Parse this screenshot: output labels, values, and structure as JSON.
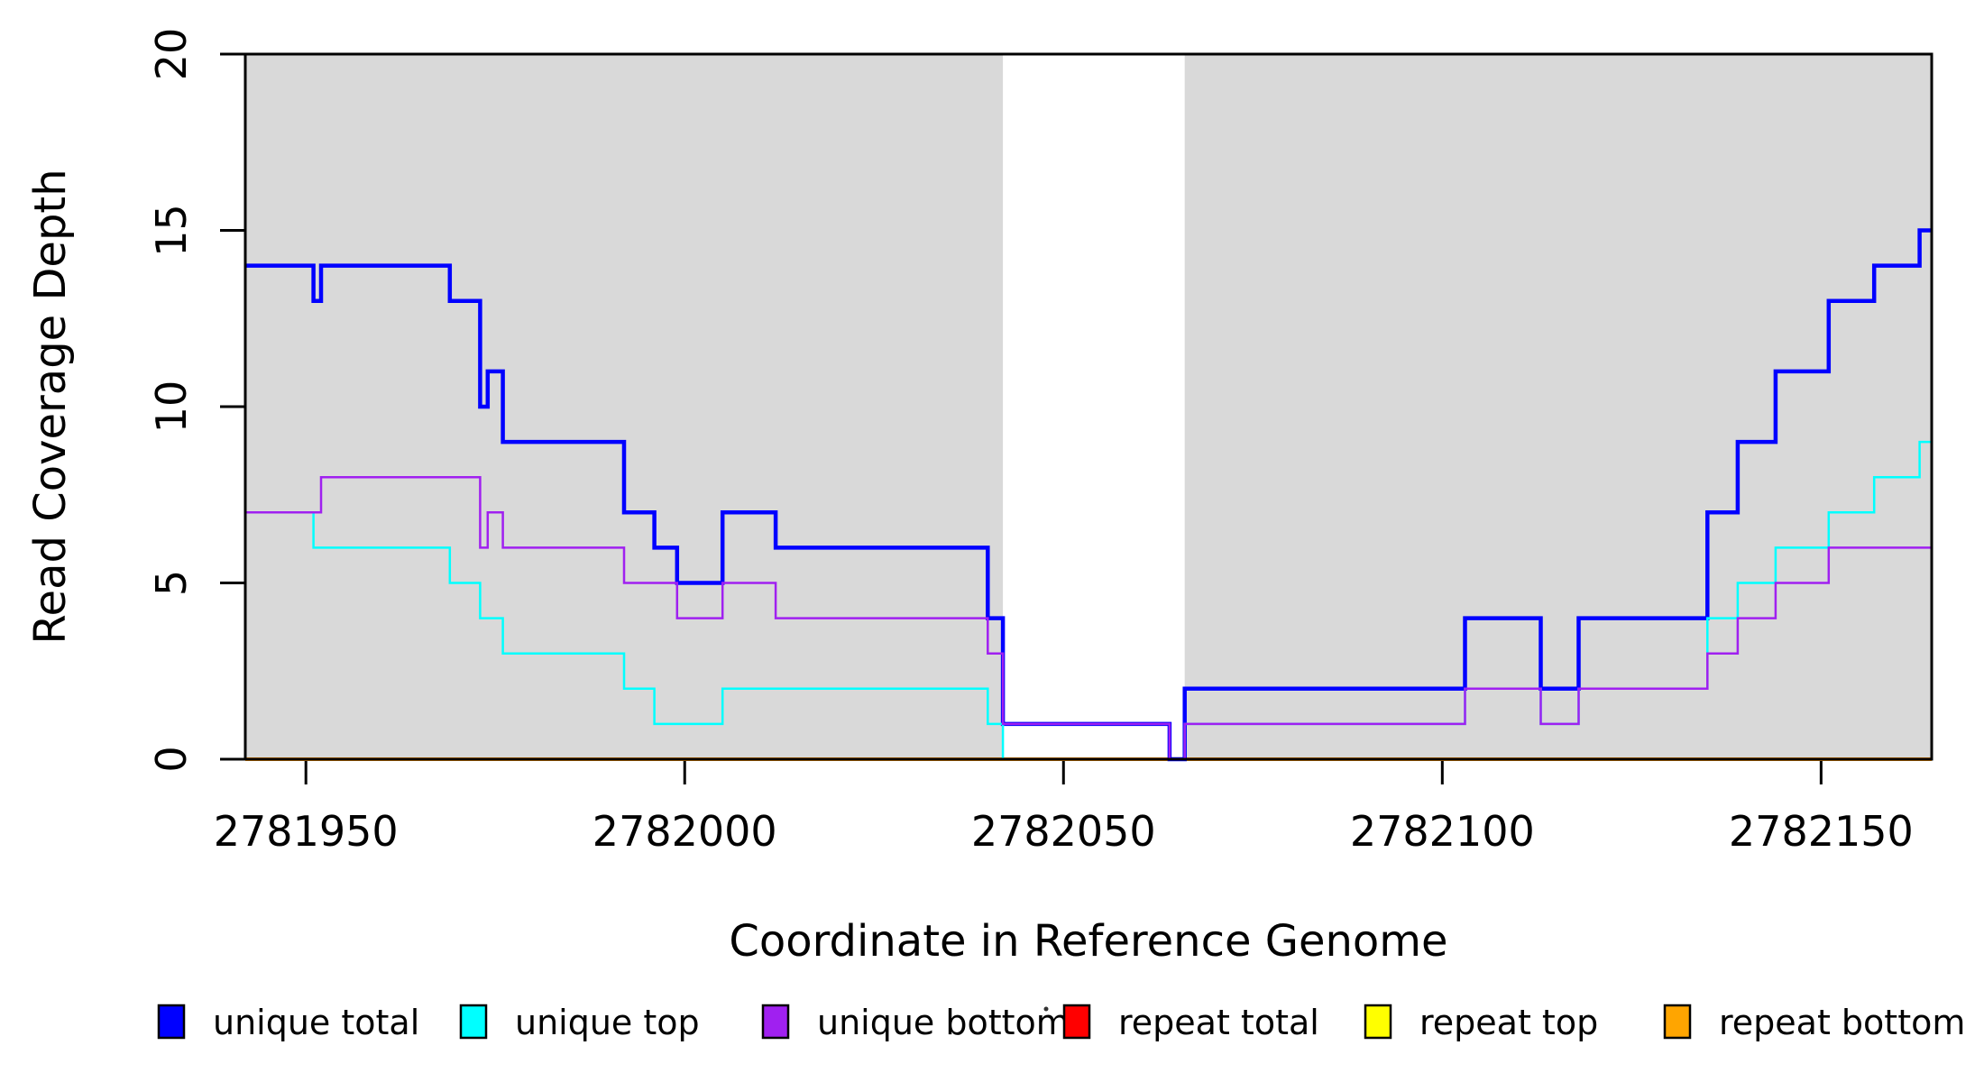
{
  "figure": {
    "background": "#FFFFFF",
    "plot_background_shade": "#D9D9D9",
    "box_color": "#000000"
  },
  "chart_data": {
    "type": "line",
    "subtype": "step-post",
    "title": "",
    "xlabel": "Coordinate in Reference Genome",
    "ylabel": "Read Coverage Depth",
    "xlim": [
      2781942,
      2782164.6
    ],
    "ylim": [
      0,
      20
    ],
    "grid": false,
    "legend_position": "bottom",
    "x_ticks": [
      {
        "value": 2781950,
        "label": "2781950"
      },
      {
        "value": 2782000,
        "label": "2782000"
      },
      {
        "value": 2782050,
        "label": "2782050"
      },
      {
        "value": 2782100,
        "label": "2782100"
      },
      {
        "value": 2782150,
        "label": "2782150"
      }
    ],
    "y_ticks": [
      {
        "value": 0,
        "label": "0"
      },
      {
        "value": 5,
        "label": "5"
      },
      {
        "value": 10,
        "label": "10"
      },
      {
        "value": 15,
        "label": "15"
      },
      {
        "value": 20,
        "label": "20"
      }
    ],
    "shaded_regions": [
      {
        "from": 2781942,
        "to": 2782042,
        "color": "#D9D9D9"
      },
      {
        "from": 2782066,
        "to": 2782164.6,
        "color": "#D9D9D9"
      }
    ],
    "x_end": 2782164.6,
    "series": [
      {
        "name": "unique total",
        "color": "#0000FF",
        "line_width": 4.5,
        "steps": [
          [
            2781942,
            14
          ],
          [
            2781951,
            13
          ],
          [
            2781952,
            14
          ],
          [
            2781969,
            13
          ],
          [
            2781973,
            10
          ],
          [
            2781974,
            11
          ],
          [
            2781976,
            9
          ],
          [
            2781992,
            7
          ],
          [
            2781996,
            6
          ],
          [
            2781999,
            5
          ],
          [
            2782005,
            7
          ],
          [
            2782012,
            6
          ],
          [
            2782040,
            4
          ],
          [
            2782042,
            1
          ],
          [
            2782064,
            0
          ],
          [
            2782066,
            2
          ],
          [
            2782103,
            4
          ],
          [
            2782113,
            2
          ],
          [
            2782118,
            4
          ],
          [
            2782135,
            7
          ],
          [
            2782139,
            9
          ],
          [
            2782144,
            11
          ],
          [
            2782151,
            13
          ],
          [
            2782157,
            14
          ],
          [
            2782163,
            15
          ]
        ]
      },
      {
        "name": "unique top",
        "color": "#00FFFF",
        "line_width": 2.5,
        "steps": [
          [
            2781942,
            7
          ],
          [
            2781951,
            6
          ],
          [
            2781969,
            5
          ],
          [
            2781973,
            4
          ],
          [
            2781976,
            3
          ],
          [
            2781992,
            2
          ],
          [
            2781996,
            1
          ],
          [
            2782005,
            2
          ],
          [
            2782040,
            1
          ],
          [
            2782042,
            0
          ],
          [
            2782066,
            1
          ],
          [
            2782103,
            2
          ],
          [
            2782113,
            1
          ],
          [
            2782118,
            2
          ],
          [
            2782135,
            4
          ],
          [
            2782139,
            5
          ],
          [
            2782144,
            6
          ],
          [
            2782151,
            7
          ],
          [
            2782157,
            8
          ],
          [
            2782163,
            9
          ]
        ]
      },
      {
        "name": "unique bottom",
        "color": "#A020F0",
        "line_width": 2.5,
        "steps": [
          [
            2781942,
            7
          ],
          [
            2781952,
            8
          ],
          [
            2781973,
            6
          ],
          [
            2781974,
            7
          ],
          [
            2781976,
            6
          ],
          [
            2781992,
            5
          ],
          [
            2781999,
            4
          ],
          [
            2782005,
            5
          ],
          [
            2782012,
            4
          ],
          [
            2782040,
            3
          ],
          [
            2782042,
            1
          ],
          [
            2782064,
            0
          ],
          [
            2782066,
            1
          ],
          [
            2782103,
            2
          ],
          [
            2782113,
            1
          ],
          [
            2782118,
            2
          ],
          [
            2782135,
            3
          ],
          [
            2782139,
            4
          ],
          [
            2782144,
            5
          ],
          [
            2782151,
            6
          ]
        ]
      },
      {
        "name": "repeat total",
        "color": "#FF0000",
        "line_width": 4.0,
        "steps": [
          [
            2781942,
            0
          ]
        ]
      },
      {
        "name": "repeat top",
        "color": "#FFFF00",
        "line_width": 3.5,
        "steps": [
          [
            2781942,
            0
          ]
        ]
      },
      {
        "name": "repeat bottom",
        "color": "#FFA500",
        "line_width": 3.5,
        "steps": [
          [
            2781942,
            0
          ]
        ]
      }
    ],
    "draw_order": [
      3,
      4,
      5,
      0,
      1,
      2
    ]
  },
  "legend": {
    "entries": [
      {
        "label": "unique total",
        "color": "#0000FF"
      },
      {
        "label": "unique top",
        "color": "#00FFFF"
      },
      {
        "label": "unique bottom",
        "color": "#A020F0"
      },
      {
        "label": "repeat total",
        "color": "#FF0000"
      },
      {
        "label": "repeat top",
        "color": "#FFFF00"
      },
      {
        "label": "repeat bottom",
        "color": "#FFA500"
      }
    ]
  }
}
